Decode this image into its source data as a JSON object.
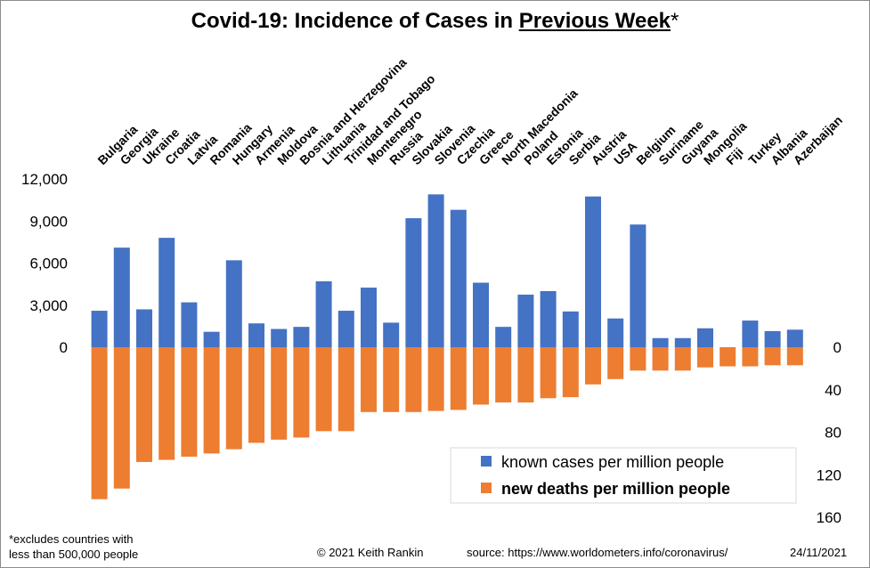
{
  "title": {
    "prefix": "Covid-19: Incidence of Cases in ",
    "underlined": "Previous Week",
    "suffix": "*"
  },
  "footer": {
    "note_line1": "*excludes countries with",
    "note_line2": "less than 500,000 people",
    "copyright": "© 2021   Keith Rankin",
    "source": "source:  https://www.worldometers.info/coronavirus/",
    "date": "24/11/2021"
  },
  "colors": {
    "cases": "#4472C4",
    "deaths": "#ED7D31"
  },
  "chart_data": {
    "type": "bar",
    "categories": [
      "Bulgaria",
      "Georgia",
      "Ukraine",
      "Croatia",
      "Latvia",
      "Romania",
      "Hungary",
      "Armenia",
      "Moldova",
      "Bosnia and Herzegovina",
      "Lithuania",
      "Trinidad and Tobago",
      "Montenegro",
      "Russia",
      "Slovakia",
      "Slovenia",
      "Czechia",
      "Greece",
      "North Macedonia",
      "Poland",
      "Estonia",
      "Serbia",
      "Austria",
      "USA",
      "Belgium",
      "Suriname",
      "Guyana",
      "Mongolia",
      "Fiji",
      "Turkey",
      "Albania",
      "Azerbaijan"
    ],
    "series": [
      {
        "name": "known cases per million people",
        "axis": "left",
        "direction": "up",
        "values": [
          2600,
          7100,
          2700,
          7800,
          3200,
          1100,
          6200,
          1700,
          1300,
          1450,
          4700,
          2600,
          4250,
          1750,
          9200,
          10900,
          9800,
          4600,
          1450,
          3750,
          4000,
          2550,
          10750,
          2050,
          8750,
          650,
          650,
          1350,
          0,
          1900,
          1150,
          1250
        ]
      },
      {
        "name": "new deaths per million people",
        "axis": "right",
        "direction": "down",
        "values": [
          143,
          133,
          108,
          106,
          103,
          100,
          96,
          90,
          87,
          85,
          79,
          79,
          61,
          61,
          61,
          60,
          59,
          54,
          52,
          52,
          48,
          47,
          35,
          30,
          22,
          22,
          22,
          19,
          18,
          18,
          17,
          17
        ]
      }
    ],
    "left_axis": {
      "ticks": [
        "12,000",
        "9,000",
        "6,000",
        "3,000",
        "0"
      ],
      "range": [
        0,
        12000
      ]
    },
    "right_axis": {
      "ticks": [
        "0",
        "40",
        "80",
        "120",
        "160"
      ],
      "range": [
        0,
        160
      ]
    },
    "legend": {
      "placement": "bottom-right"
    }
  }
}
